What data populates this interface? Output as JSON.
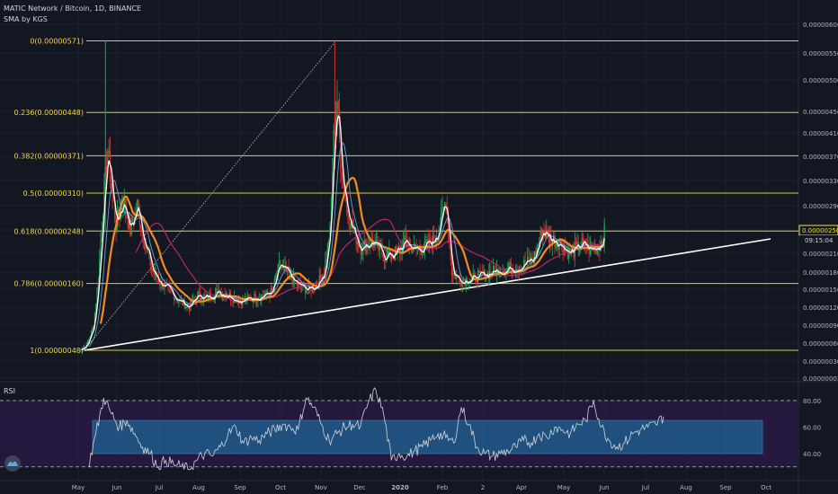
{
  "header": {
    "symbol": "MATIC Network / Bitcoin, 1D, BINANCE",
    "indicator": "SMA by KGS"
  },
  "rsi_panel": {
    "title": "RSI"
  },
  "price_tag": {
    "value": "0.00000250",
    "countdown": "09:15:04"
  },
  "colors": {
    "background": "#131722",
    "fib": "#f0e03c",
    "label": "#f5d442",
    "up": "#26a65b",
    "down": "#e0302f",
    "sma_fast": "#ffffff",
    "sma_mid": "#f28c1c",
    "sma_slow": "#b0246e",
    "sma_extra": "#6b9dd0",
    "rsi_band": "#1e7fb0",
    "rsi_line": "#d1d4dc"
  },
  "chart_data": [
    {
      "type": "candlestick",
      "title": "MATIC Network / Bitcoin, 1D, BINANCE",
      "y_tick_labels": [
        "0.00000600",
        "0.00000550",
        "0.00000500",
        "0.00000450",
        "0.00000410",
        "0.00000370",
        "0.00000330",
        "0.00000290",
        "0.00000250",
        "0.00000210",
        "0.00000180",
        "0.00000150",
        "0.00000120",
        "0.00000090",
        "0.00000060",
        "0.00000030",
        "0.00000002"
      ],
      "x_tick_labels": [
        "May",
        "Jun",
        "Jul",
        "Aug",
        "Sep",
        "Oct",
        "Nov",
        "Dec",
        "2020",
        "Feb",
        "2",
        "Apr",
        "May",
        "Jun",
        "Jul",
        "Aug",
        "Sep",
        "Oct"
      ],
      "fib_levels": [
        {
          "label": "0(0.00000571)",
          "value": 5.71e-06
        },
        {
          "label": "0.236(0.00000448)",
          "value": 4.48e-06
        },
        {
          "label": "0.382(0.00000371)",
          "value": 3.71e-06
        },
        {
          "label": "0.5(0.00000310)",
          "value": 3.1e-06
        },
        {
          "label": "0.618(0.00000248)",
          "value": 2.48e-06
        },
        {
          "label": "0.786(0.00000160)",
          "value": 1.6e-06
        },
        {
          "label": "1(0.00000048)",
          "value": 4.8e-07
        }
      ],
      "close_path": [
        [
          "2019-05-01",
          4.8e-07
        ],
        [
          "2019-05-08",
          5.6e-07
        ],
        [
          "2019-05-14",
          9e-07
        ],
        [
          "2019-05-18",
          1.7e-06
        ],
        [
          "2019-05-22",
          2.9e-06
        ],
        [
          "2019-05-26",
          3.8e-06
        ],
        [
          "2019-05-29",
          3.2e-06
        ],
        [
          "2019-06-02",
          2.6e-06
        ],
        [
          "2019-06-08",
          3e-06
        ],
        [
          "2019-06-14",
          2.5e-06
        ],
        [
          "2019-06-20",
          2.9e-06
        ],
        [
          "2019-06-26",
          2.3e-06
        ],
        [
          "2019-07-03",
          1.8e-06
        ],
        [
          "2019-07-10",
          1.6e-06
        ],
        [
          "2019-07-18",
          1.45e-06
        ],
        [
          "2019-07-26",
          1.3e-06
        ],
        [
          "2019-08-03",
          1.2e-06
        ],
        [
          "2019-08-10",
          1.4e-06
        ],
        [
          "2019-08-18",
          1.35e-06
        ],
        [
          "2019-08-26",
          1.45e-06
        ],
        [
          "2019-09-05",
          1.4e-06
        ],
        [
          "2019-09-15",
          1.3e-06
        ],
        [
          "2019-09-25",
          1.35e-06
        ],
        [
          "2019-10-05",
          1.4e-06
        ],
        [
          "2019-10-12",
          1.45e-06
        ],
        [
          "2019-10-18",
          1.9e-06
        ],
        [
          "2019-10-24",
          1.8e-06
        ],
        [
          "2019-11-01",
          1.6e-06
        ],
        [
          "2019-11-10",
          1.5e-06
        ],
        [
          "2019-11-18",
          1.55e-06
        ],
        [
          "2019-11-25",
          1.8e-06
        ],
        [
          "2019-11-30",
          2.5e-06
        ],
        [
          "2019-12-03",
          4e-06
        ],
        [
          "2019-12-06",
          4.7e-06
        ],
        [
          "2019-12-09",
          3.6e-06
        ],
        [
          "2019-12-13",
          3e-06
        ],
        [
          "2019-12-19",
          2.5e-06
        ],
        [
          "2019-12-26",
          2.2e-06
        ],
        [
          "2020-01-05",
          2.3e-06
        ],
        [
          "2020-01-15",
          2.05e-06
        ],
        [
          "2020-01-25",
          2.1e-06
        ],
        [
          "2020-02-02",
          2.3e-06
        ],
        [
          "2020-02-10",
          2.15e-06
        ],
        [
          "2020-02-18",
          2.2e-06
        ],
        [
          "2020-02-25",
          2.3e-06
        ],
        [
          "2020-03-02",
          2.6e-06
        ],
        [
          "2020-03-07",
          3e-06
        ],
        [
          "2020-03-12",
          1.8e-06
        ],
        [
          "2020-03-20",
          1.65e-06
        ],
        [
          "2020-04-01",
          1.7e-06
        ],
        [
          "2020-04-15",
          1.8e-06
        ],
        [
          "2020-04-28",
          1.85e-06
        ],
        [
          "2020-05-10",
          1.9e-06
        ],
        [
          "2020-05-20",
          2e-06
        ],
        [
          "2020-05-28",
          2.5e-06
        ],
        [
          "2020-06-03",
          2.35e-06
        ],
        [
          "2020-06-10",
          2.3e-06
        ],
        [
          "2020-06-20",
          2.1e-06
        ],
        [
          "2020-06-30",
          2.25e-06
        ],
        [
          "2020-07-08",
          2.15e-06
        ],
        [
          "2020-07-15",
          2.25e-06
        ],
        [
          "2020-07-20",
          2.5e-06
        ]
      ]
    },
    {
      "type": "line",
      "title": "RSI",
      "y_tick_labels": [
        "80.00",
        "60.00",
        "40.00"
      ],
      "band": [
        40,
        65
      ],
      "values": [
        30,
        55,
        82,
        70,
        60,
        65,
        55,
        45,
        40,
        30,
        35,
        32,
        30,
        28,
        35,
        40,
        38,
        45,
        55,
        60,
        48,
        52,
        50,
        55,
        58,
        62,
        60,
        58,
        82,
        75,
        62,
        50,
        55,
        60,
        62,
        60,
        78,
        88,
        70,
        35,
        40,
        38,
        42,
        45,
        50,
        55,
        52,
        48,
        75,
        62,
        45,
        40,
        38,
        40,
        42,
        45,
        50,
        48,
        55,
        52,
        60,
        58,
        55,
        62,
        65,
        80,
        60,
        50,
        45,
        48,
        55,
        58,
        60,
        62,
        68
      ]
    }
  ]
}
